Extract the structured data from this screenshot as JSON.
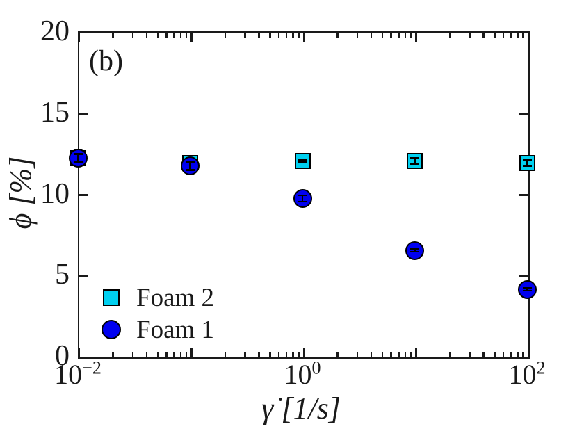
{
  "chart_data": {
    "type": "scatter",
    "annotation": "(b)",
    "xlabel": "γ̇  [1/s]",
    "ylabel": "ϕ [%]",
    "x_scale": "log10",
    "xlim": [
      0.01,
      100
    ],
    "ylim": [
      0,
      20
    ],
    "grid": false,
    "legend_position": "lower-left-inside",
    "y_ticks": [
      0,
      5,
      10,
      15,
      20
    ],
    "y_tick_labels": [
      "0",
      "5",
      "10",
      "15",
      "20"
    ],
    "x_major_ticks": [
      0.01,
      0.1,
      1,
      10,
      100
    ],
    "x_labeled_ticks": [
      {
        "value": 0.01,
        "base": "10",
        "exp": "−2"
      },
      {
        "value": 1,
        "base": "10",
        "exp": "0"
      },
      {
        "value": 100,
        "base": "10",
        "exp": "2"
      }
    ],
    "series": [
      {
        "name": "Foam 2",
        "marker": "square",
        "fill": "#00d0f0",
        "x": [
          0.01,
          0.1,
          1,
          10,
          100
        ],
        "y": [
          12.2,
          11.9,
          12.0,
          12.0,
          11.9
        ],
        "yerr": [
          0.2,
          0.2,
          0.08,
          0.2,
          0.2
        ]
      },
      {
        "name": "Foam 1",
        "marker": "circle",
        "fill": "#0000f0",
        "x": [
          0.01,
          0.1,
          1,
          10,
          100
        ],
        "y": [
          12.2,
          11.7,
          9.7,
          6.5,
          4.1
        ],
        "yerr": [
          0.25,
          0.25,
          0.2,
          0.07,
          0.07
        ]
      }
    ]
  },
  "colors": {
    "axis": "#1a1a1a",
    "marker_edge": "#000000",
    "foam2_fill": "#00d0f0",
    "foam1_fill": "#0000f0",
    "background": "#ffffff"
  },
  "legend": {
    "items": [
      {
        "label": "Foam 2",
        "marker": "square"
      },
      {
        "label": "Foam 1",
        "marker": "circle"
      }
    ]
  }
}
